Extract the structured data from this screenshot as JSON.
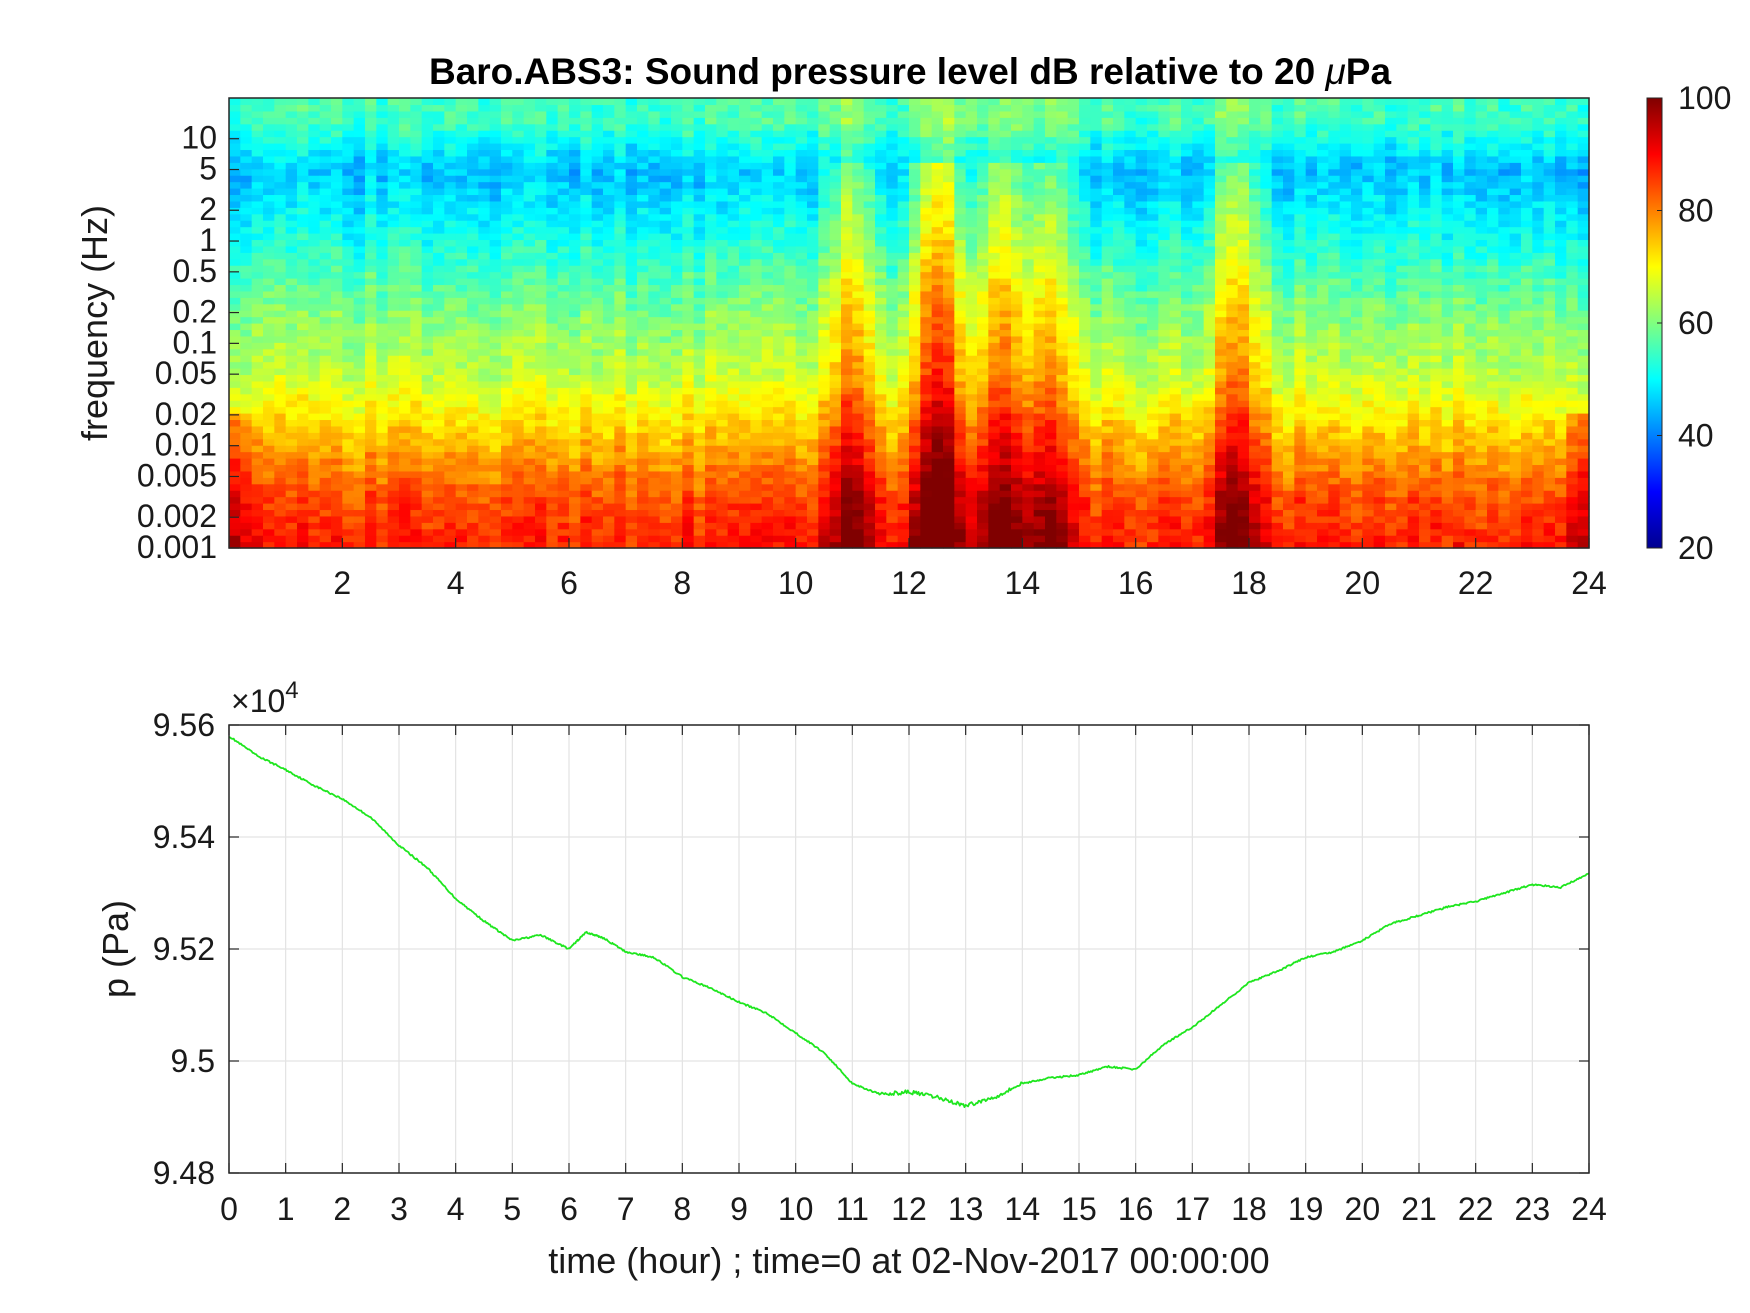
{
  "figure": {
    "background": "#ffffff"
  },
  "colormap": "jet",
  "chart_data": [
    {
      "type": "heatmap",
      "title_parts": [
        "Baro.ABS3: Sound pressure level dB relative to 20 ",
        "μ",
        "Pa"
      ],
      "ylabel": "frequency (Hz)",
      "xlabel": "",
      "x_range": [
        0,
        24
      ],
      "x_ticks": [
        2,
        4,
        6,
        8,
        10,
        12,
        14,
        16,
        18,
        20,
        22,
        24
      ],
      "y_scale": "log",
      "y_range": [
        0.001,
        25
      ],
      "y_ticks": [
        {
          "value": 0.001,
          "label": "0.001"
        },
        {
          "value": 0.002,
          "label": "0.002"
        },
        {
          "value": 0.005,
          "label": "0.005"
        },
        {
          "value": 0.01,
          "label": "0.01"
        },
        {
          "value": 0.02,
          "label": "0.02"
        },
        {
          "value": 0.05,
          "label": "0.05"
        },
        {
          "value": 0.1,
          "label": "0.1"
        },
        {
          "value": 0.2,
          "label": "0.2"
        },
        {
          "value": 0.5,
          "label": "0.5"
        },
        {
          "value": 1,
          "label": "1"
        },
        {
          "value": 2,
          "label": "2"
        },
        {
          "value": 5,
          "label": "5"
        },
        {
          "value": 10,
          "label": "10"
        }
      ],
      "colorbar": {
        "range": [
          20,
          100
        ],
        "ticks": [
          20,
          40,
          60,
          80,
          100
        ]
      },
      "bands_db": [
        {
          "freq": 0.001,
          "db": 88
        },
        {
          "freq": 0.003,
          "db": 84
        },
        {
          "freq": 0.01,
          "db": 76
        },
        {
          "freq": 0.05,
          "db": 65
        },
        {
          "freq": 0.2,
          "db": 60
        },
        {
          "freq": 1,
          "db": 52
        },
        {
          "freq": 5,
          "db": 45
        },
        {
          "freq": 15,
          "db": 55
        }
      ],
      "event_peaks": [
        {
          "hour": 11.0,
          "db_boost": 14
        },
        {
          "hour": 12.5,
          "db_boost": 24
        },
        {
          "hour": 13.6,
          "db_boost": 18
        },
        {
          "hour": 14.4,
          "db_boost": 15
        },
        {
          "hour": 17.8,
          "db_boost": 16
        }
      ],
      "grid": false
    },
    {
      "type": "line",
      "xlabel": "time (hour) ; time=0 at 02-Nov-2017 00:00:00",
      "ylabel": "p (Pa)",
      "exponent_label": "×10",
      "exponent_power": "4",
      "x_range": [
        0,
        24
      ],
      "x_ticks": [
        0,
        1,
        2,
        3,
        4,
        5,
        6,
        7,
        8,
        9,
        10,
        11,
        12,
        13,
        14,
        15,
        16,
        17,
        18,
        19,
        20,
        21,
        22,
        23,
        24
      ],
      "y_range": [
        94800,
        95600
      ],
      "y_ticks": [
        {
          "value": 94800,
          "label": "9.48"
        },
        {
          "value": 95000,
          "label": "9.5"
        },
        {
          "value": 95200,
          "label": "9.52"
        },
        {
          "value": 95400,
          "label": "9.54"
        },
        {
          "value": 95600,
          "label": "9.56"
        }
      ],
      "grid": true,
      "series": [
        {
          "color": "#1ee61e",
          "x": [
            0,
            0.5,
            1,
            1.5,
            2,
            2.5,
            3,
            3.5,
            4,
            4.5,
            5,
            5.5,
            6,
            6.3,
            6.6,
            7,
            7.5,
            8,
            8.5,
            9,
            9.5,
            10,
            10.5,
            11,
            11.5,
            12,
            12.5,
            13,
            13.5,
            14,
            14.5,
            15,
            15.5,
            16,
            16.5,
            17,
            17.5,
            18,
            18.5,
            19,
            19.5,
            20,
            20.5,
            21,
            21.5,
            22,
            22.5,
            23,
            23.5,
            24
          ],
          "y": [
            95580,
            95545,
            95520,
            95492,
            95468,
            95435,
            95385,
            95345,
            95290,
            95250,
            95215,
            95225,
            95200,
            95230,
            95220,
            95195,
            95185,
            95150,
            95130,
            95105,
            95085,
            95050,
            95015,
            94960,
            94940,
            94945,
            94935,
            94920,
            94935,
            94960,
            94970,
            94975,
            94990,
            94985,
            95030,
            95060,
            95100,
            95140,
            95160,
            95185,
            95195,
            95215,
            95245,
            95260,
            95275,
            95285,
            95300,
            95315,
            95310,
            95335
          ]
        }
      ]
    }
  ]
}
